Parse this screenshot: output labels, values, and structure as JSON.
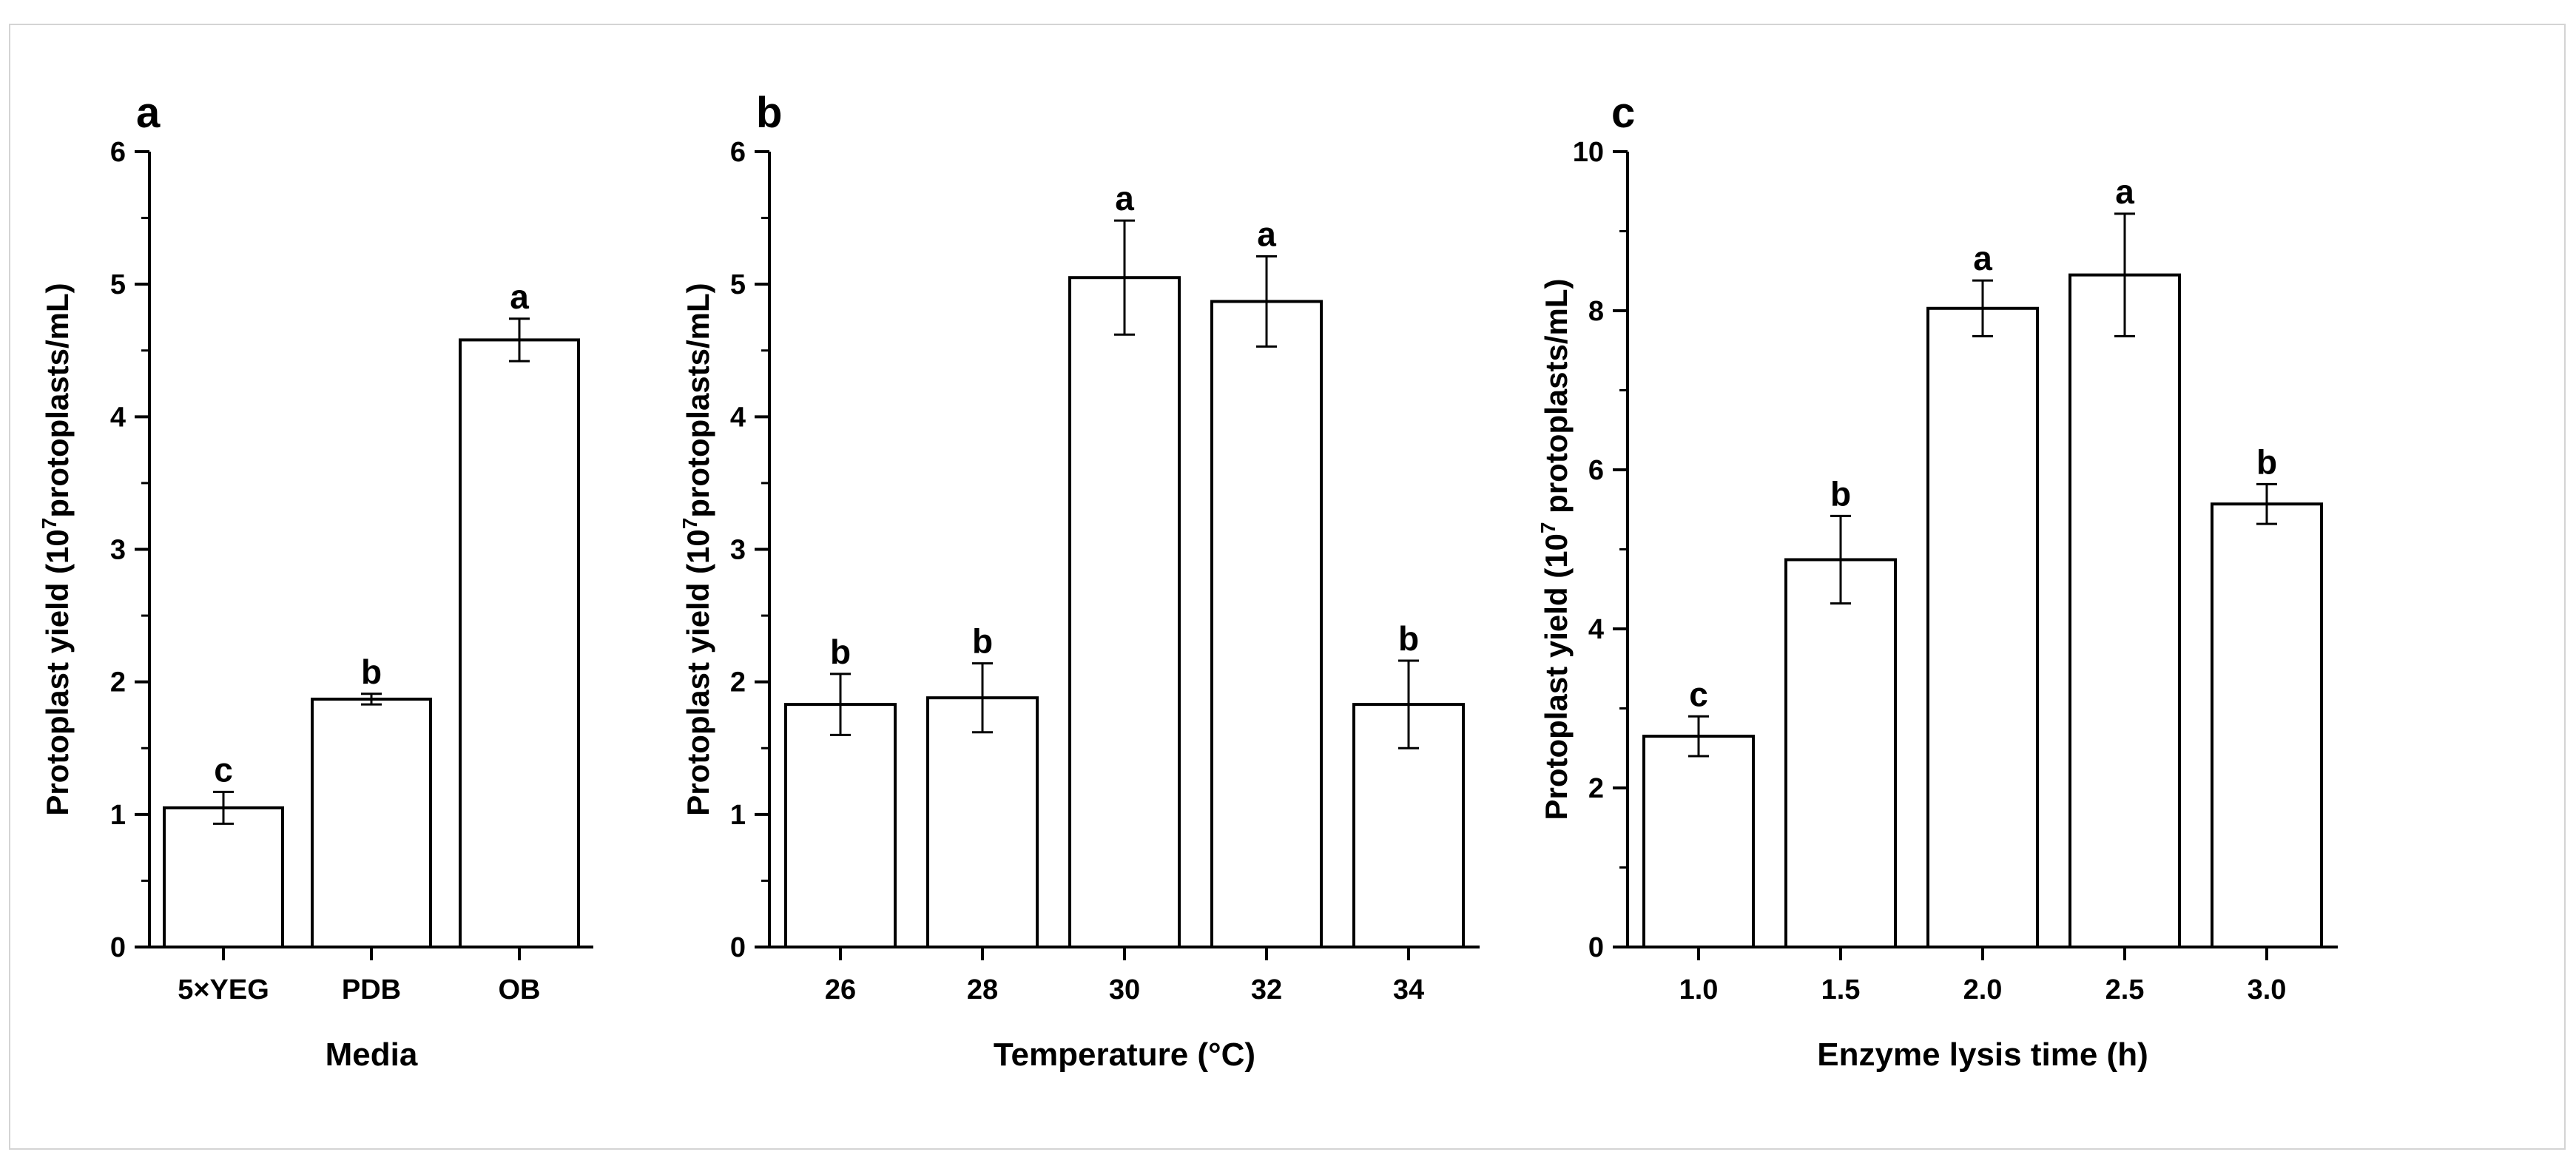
{
  "chart_data": [
    {
      "type": "bar",
      "panel_label": "a",
      "categories": [
        "5×YEG",
        "PDB",
        "OB"
      ],
      "values": [
        1.05,
        1.87,
        4.58
      ],
      "errors": [
        0.12,
        0.04,
        0.16
      ],
      "letters": [
        "c",
        "b",
        "a"
      ],
      "xlabel": "Media",
      "ylabel_prefix": "Protoplast yield (10",
      "ylabel_exp": "7",
      "ylabel_suffix": "protoplasts/mL)",
      "ylim": [
        0,
        6
      ],
      "yticks": [
        "0",
        "1",
        "2",
        "3",
        "4",
        "5",
        "6"
      ],
      "grid": false
    },
    {
      "type": "bar",
      "panel_label": "b",
      "categories": [
        "26",
        "28",
        "30",
        "32",
        "34"
      ],
      "values": [
        1.83,
        1.88,
        5.05,
        4.87,
        1.83
      ],
      "errors": [
        0.23,
        0.26,
        0.43,
        0.34,
        0.33
      ],
      "letters": [
        "b",
        "b",
        "a",
        "a",
        "b"
      ],
      "xlabel": "Temperature (°C)",
      "ylabel_prefix": "Protoplast yield (10",
      "ylabel_exp": "7",
      "ylabel_suffix": "protoplasts/mL)",
      "ylim": [
        0,
        6
      ],
      "yticks": [
        "0",
        "1",
        "2",
        "3",
        "4",
        "5",
        "6"
      ],
      "grid": false
    },
    {
      "type": "bar",
      "panel_label": "c",
      "categories": [
        "1.0",
        "1.5",
        "2.0",
        "2.5",
        "3.0"
      ],
      "values": [
        2.65,
        4.87,
        8.03,
        8.45,
        5.57
      ],
      "errors": [
        0.25,
        0.55,
        0.35,
        0.77,
        0.25
      ],
      "letters": [
        "c",
        "b",
        "a",
        "a",
        "b"
      ],
      "xlabel": "Enzyme lysis time (h)",
      "ylabel_prefix": "Protoplast yield (10",
      "ylabel_exp": "7",
      "ylabel_suffix": " protoplasts/mL)",
      "ylim": [
        0,
        10
      ],
      "yticks": [
        "0",
        "2",
        "4",
        "6",
        "8",
        "10"
      ],
      "grid": false
    }
  ]
}
